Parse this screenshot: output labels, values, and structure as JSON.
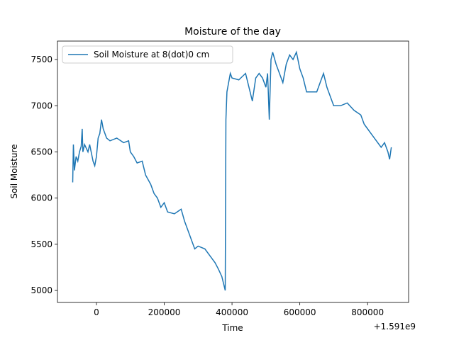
{
  "chart_data": {
    "type": "line",
    "title": "Moisture of the day",
    "x_label": "Time",
    "y_label": "Soil Moisture",
    "x_offset_label": "+1.591e9",
    "legend": "upper left",
    "xlim": [
      -115000,
      921000
    ],
    "ylim": [
      4870,
      7700
    ],
    "xticks": [
      0,
      200000,
      400000,
      600000,
      800000
    ],
    "yticks": [
      5000,
      5500,
      6000,
      6500,
      7000,
      7500
    ],
    "x": [
      -70000,
      -68000,
      -65000,
      -60000,
      -55000,
      -50000,
      -45000,
      -42000,
      -40000,
      -35000,
      -25000,
      -20000,
      -10000,
      -5000,
      0,
      5000,
      10000,
      15000,
      20000,
      30000,
      40000,
      60000,
      80000,
      95000,
      100000,
      110000,
      120000,
      135000,
      145000,
      160000,
      170000,
      180000,
      190000,
      200000,
      210000,
      230000,
      250000,
      260000,
      270000,
      280000,
      290000,
      300000,
      320000,
      330000,
      340000,
      350000,
      360000,
      370000,
      380000,
      382000,
      385000,
      390000,
      395000,
      400000,
      420000,
      440000,
      450000,
      460000,
      470000,
      480000,
      490000,
      500000,
      505000,
      510000,
      515000,
      520000,
      530000,
      540000,
      550000,
      560000,
      570000,
      580000,
      590000,
      600000,
      610000,
      620000,
      650000,
      660000,
      670000,
      680000,
      690000,
      700000,
      720000,
      740000,
      760000,
      780000,
      790000,
      800000,
      810000,
      820000,
      840000,
      850000,
      860000,
      865000,
      870000
    ],
    "series": [
      {
        "name": "Soil Moisture at 8(dot)0 cm",
        "color": "#1f77b4",
        "values": [
          6170,
          6580,
          6300,
          6450,
          6400,
          6500,
          6560,
          6750,
          6500,
          6580,
          6500,
          6580,
          6400,
          6350,
          6450,
          6650,
          6700,
          6850,
          6750,
          6650,
          6620,
          6650,
          6600,
          6620,
          6500,
          6450,
          6380,
          6400,
          6250,
          6150,
          6050,
          6000,
          5900,
          5950,
          5850,
          5830,
          5880,
          5750,
          5650,
          5550,
          5450,
          5480,
          5450,
          5400,
          5350,
          5300,
          5230,
          5150,
          5000,
          6850,
          7150,
          7250,
          7350,
          7300,
          7280,
          7350,
          7200,
          7050,
          7300,
          7350,
          7300,
          7200,
          7350,
          6850,
          7500,
          7580,
          7450,
          7350,
          7250,
          7450,
          7550,
          7500,
          7580,
          7400,
          7300,
          7150,
          7150,
          7250,
          7350,
          7200,
          7100,
          7000,
          7000,
          7030,
          6950,
          6900,
          6800,
          6750,
          6700,
          6650,
          6550,
          6600,
          6500,
          6420,
          6550
        ]
      }
    ]
  }
}
